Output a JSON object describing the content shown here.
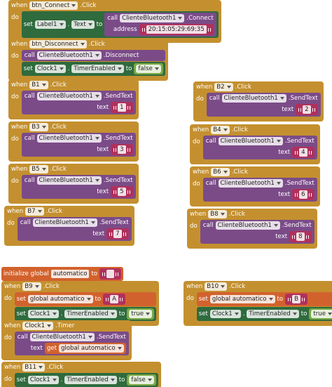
{
  "blocks": [
    {
      "kind": "event",
      "when": "when",
      "component": "btn_Connect",
      "event": ".Click",
      "do": "do",
      "body": [
        {
          "kind": "set",
          "set": "set",
          "component": "Label1",
          "dot": ".",
          "property": "Text",
          "to": "to",
          "value": {
            "kind": "call",
            "call": "call",
            "component": "ClienteBluetooth1",
            "method": ".Connect",
            "args": [
              {
                "name": "address",
                "value": {
                  "kind": "text",
                  "text": "20:15:05:29:69:35"
                }
              }
            ]
          }
        }
      ]
    },
    {
      "kind": "event",
      "when": "when",
      "component": "btn_Disconnect",
      "event": ".Click",
      "do": "do",
      "body": [
        {
          "kind": "call",
          "call": "call",
          "component": "ClienteBluetooth1",
          "method": ".Disconnect",
          "args": []
        },
        {
          "kind": "set",
          "set": "set",
          "component": "Clock1",
          "dot": ".",
          "property": "TimerEnabled",
          "to": "to",
          "value": {
            "kind": "bool",
            "value": "false"
          }
        }
      ]
    },
    {
      "kind": "event",
      "when": "when",
      "component": "B1",
      "event": ".Click",
      "do": "do",
      "body": [
        {
          "kind": "call",
          "call": "call",
          "component": "ClienteBluetooth1",
          "method": ".SendText",
          "args": [
            {
              "name": "text",
              "value": {
                "kind": "text",
                "text": "1"
              }
            }
          ]
        }
      ]
    },
    {
      "kind": "event",
      "when": "when",
      "component": "B2",
      "event": ".Click",
      "do": "do",
      "body": [
        {
          "kind": "call",
          "call": "call",
          "component": "ClienteBluetooth1",
          "method": ".SendText",
          "args": [
            {
              "name": "text",
              "value": {
                "kind": "text",
                "text": "2"
              }
            }
          ]
        }
      ]
    },
    {
      "kind": "event",
      "when": "when",
      "component": "B3",
      "event": ".Click",
      "do": "do",
      "body": [
        {
          "kind": "call",
          "call": "call",
          "component": "ClienteBluetooth1",
          "method": ".SendText",
          "args": [
            {
              "name": "text",
              "value": {
                "kind": "text",
                "text": "3"
              }
            }
          ]
        }
      ]
    },
    {
      "kind": "event",
      "when": "when",
      "component": "B4",
      "event": ".Click",
      "do": "do",
      "body": [
        {
          "kind": "call",
          "call": "call",
          "component": "ClienteBluetooth1",
          "method": ".SendText",
          "args": [
            {
              "name": "text",
              "value": {
                "kind": "text",
                "text": "4"
              }
            }
          ]
        }
      ]
    },
    {
      "kind": "event",
      "when": "when",
      "component": "B5",
      "event": ".Click",
      "do": "do",
      "body": [
        {
          "kind": "call",
          "call": "call",
          "component": "ClienteBluetooth1",
          "method": ".SendText",
          "args": [
            {
              "name": "text",
              "value": {
                "kind": "text",
                "text": "5"
              }
            }
          ]
        }
      ]
    },
    {
      "kind": "event",
      "when": "when",
      "component": "B6",
      "event": ".Click",
      "do": "do",
      "body": [
        {
          "kind": "call",
          "call": "call",
          "component": "ClienteBluetooth1",
          "method": ".SendText",
          "args": [
            {
              "name": "text",
              "value": {
                "kind": "text",
                "text": "6"
              }
            }
          ]
        }
      ]
    },
    {
      "kind": "event",
      "when": "when",
      "component": "B7",
      "event": ".Click",
      "do": "do",
      "body": [
        {
          "kind": "call",
          "call": "call",
          "component": "ClienteBluetooth1",
          "method": ".SendText",
          "args": [
            {
              "name": "text",
              "value": {
                "kind": "text",
                "text": "7"
              }
            }
          ]
        }
      ]
    },
    {
      "kind": "event",
      "when": "when",
      "component": "B8",
      "event": ".Click",
      "do": "do",
      "body": [
        {
          "kind": "call",
          "call": "call",
          "component": "ClienteBluetooth1",
          "method": ".SendText",
          "args": [
            {
              "name": "text",
              "value": {
                "kind": "text",
                "text": "8"
              }
            }
          ]
        }
      ]
    },
    {
      "kind": "init",
      "label": "initialize global",
      "name": "automatico",
      "to": "to",
      "value": {
        "kind": "text"
      }
    },
    {
      "kind": "event",
      "when": "when",
      "component": "B9",
      "event": ".Click",
      "do": "do",
      "body": [
        {
          "kind": "setvar",
          "set": "set",
          "variable": "global automatico",
          "to": "to",
          "value": {
            "kind": "text",
            "text": "A"
          }
        },
        {
          "kind": "set",
          "set": "set",
          "component": "Clock1",
          "dot": ".",
          "property": "TimerEnabled",
          "to": "to",
          "value": {
            "kind": "bool",
            "value": "true"
          }
        }
      ]
    },
    {
      "kind": "event",
      "when": "when",
      "component": "B10",
      "event": ".Click",
      "do": "do",
      "body": [
        {
          "kind": "setvar",
          "set": "set",
          "variable": "global automatico",
          "to": "to",
          "value": {
            "kind": "text",
            "text": "B"
          }
        },
        {
          "kind": "set",
          "set": "set",
          "component": "Clock1",
          "dot": ".",
          "property": "TimerEnabled",
          "to": "to",
          "value": {
            "kind": "bool",
            "value": "true"
          }
        }
      ]
    },
    {
      "kind": "event",
      "when": "when",
      "component": "Clock1",
      "event": ".Timer",
      "do": "do",
      "body": [
        {
          "kind": "call",
          "call": "call",
          "component": "ClienteBluetooth1",
          "method": ".SendText",
          "args": [
            {
              "name": "text",
              "value": {
                "kind": "get",
                "get": "get",
                "variable": "global automatico"
              }
            }
          ]
        }
      ]
    },
    {
      "kind": "event",
      "when": "when",
      "component": "B11",
      "event": ".Click",
      "do": "do",
      "body": [
        {
          "kind": "set",
          "set": "set",
          "component": "Clock1",
          "dot": ".",
          "property": "TimerEnabled",
          "to": "to",
          "value": {
            "kind": "bool",
            "value": "false"
          }
        }
      ]
    }
  ]
}
